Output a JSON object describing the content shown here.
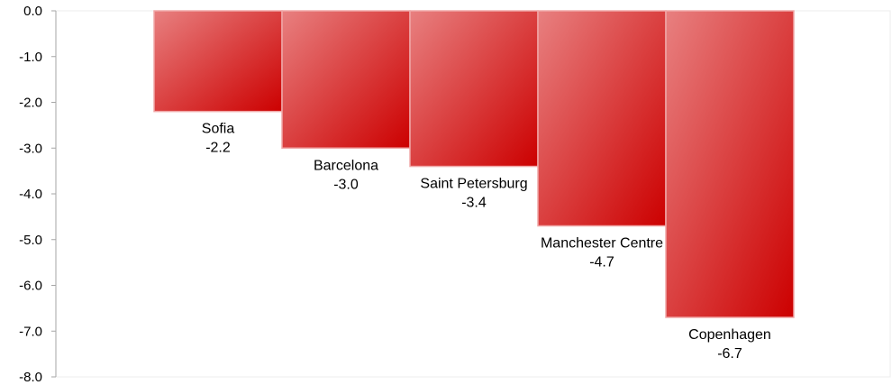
{
  "chart_data": {
    "type": "bar",
    "title": "",
    "xlabel": "",
    "ylabel": "",
    "categories": [
      "Sofia",
      "Barcelona",
      "Saint Petersburg",
      "Manchester Centre",
      "Copenhagen"
    ],
    "values": [
      -2.2,
      -3.0,
      -3.4,
      -4.7,
      -6.7
    ],
    "value_labels": [
      "-2.2",
      "-3.0",
      "-3.4",
      "-4.7",
      "-6.7"
    ],
    "ylim": [
      -8.0,
      0.0
    ],
    "yticks": [
      0,
      -1,
      -2,
      -3,
      -4,
      -5,
      -6,
      -7,
      -8
    ],
    "ytick_labels": [
      "0.0",
      "-1.0",
      "-2.0",
      "-3.0",
      "-4.0",
      "-5.0",
      "-6.0",
      "-7.0",
      "-8.0"
    ],
    "grid": false,
    "legend": "none",
    "colors": {
      "bar_light": "#e88080",
      "bar_dark": "#cc0000",
      "bar_edge": "#f0a8a8",
      "axis": "#a6a6a6"
    }
  }
}
